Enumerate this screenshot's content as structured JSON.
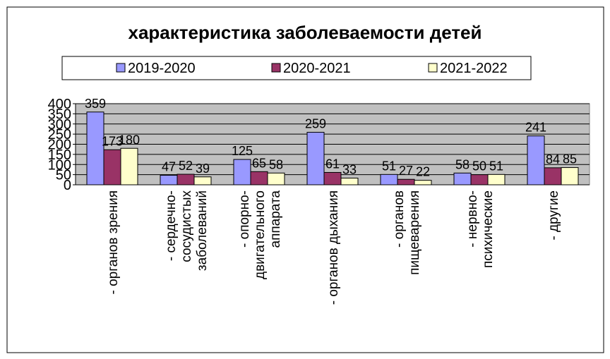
{
  "chart_data": {
    "type": "bar",
    "title": "характеристика заболеваемости детей",
    "categories": [
      "- органов зрения",
      "- сердечно-\nсосудистых\nзаболеваний",
      "- опорно-\nдвигательного\nаппарата",
      "- органов дыхания",
      "- органов\nпищеварения",
      "- нервно-\nпсихические",
      "- другие"
    ],
    "series": [
      {
        "name": "2019-2020",
        "color": "#9999ff",
        "values": [
          359,
          47,
          125,
          259,
          51,
          58,
          241
        ]
      },
      {
        "name": "2020-2021",
        "color": "#993366",
        "values": [
          173,
          52,
          65,
          61,
          27,
          50,
          84
        ]
      },
      {
        "name": "2021-2022",
        "color": "#ffffcc",
        "values": [
          180,
          39,
          58,
          33,
          22,
          51,
          85
        ]
      }
    ],
    "ylim": [
      0,
      400
    ],
    "yticks": [
      0,
      50,
      100,
      150,
      200,
      250,
      300,
      350,
      400
    ],
    "grid": true,
    "legend": "top"
  }
}
